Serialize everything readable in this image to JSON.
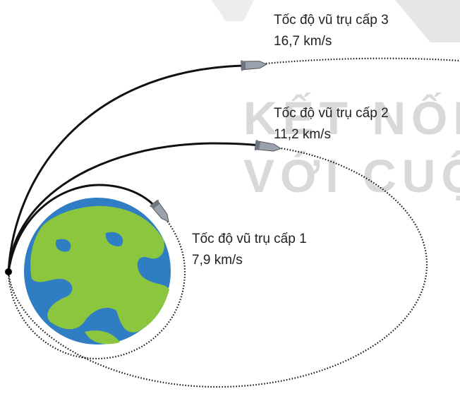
{
  "watermark": [
    "KẾT NỐI TR",
    "VỚI CUỘC"
  ],
  "trajectories": [
    {
      "name": "Tốc độ vũ trụ cấp 1",
      "speed": "7,9 km/s"
    },
    {
      "name": "Tốc độ vũ trụ cấp 2",
      "speed": "11,2 km/s"
    },
    {
      "name": "Tốc độ vũ trụ cấp 3",
      "speed": "16,7 km/s"
    }
  ]
}
